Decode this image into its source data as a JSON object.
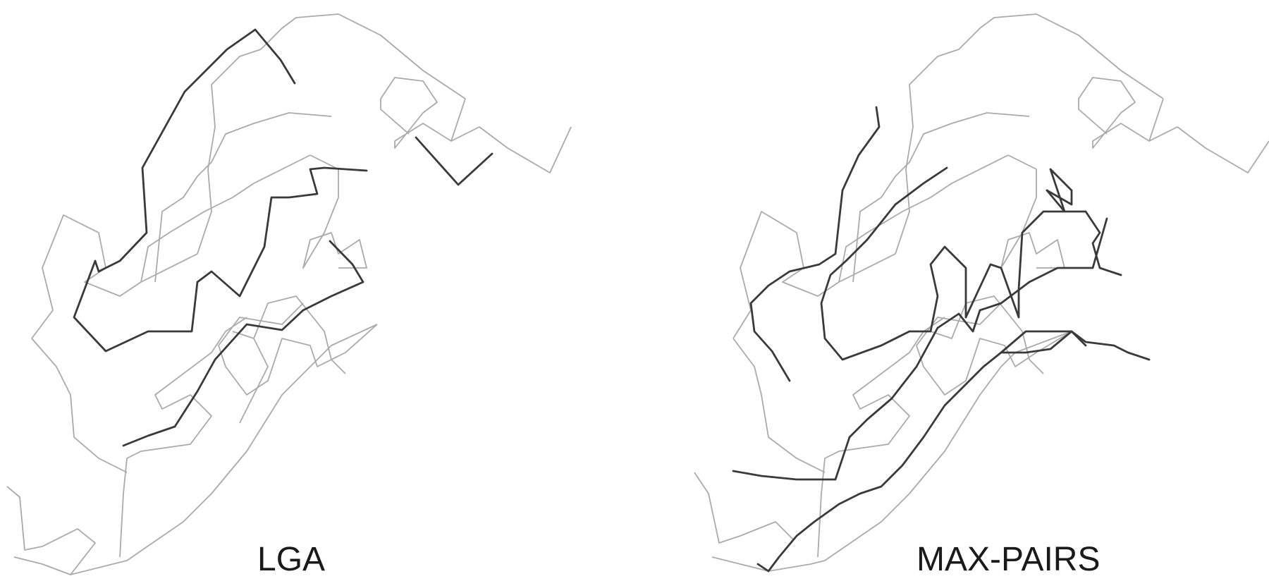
{
  "panels": [
    {
      "label": "LGA",
      "reference_color": "#aaaaaa",
      "superposed_color": "#3a3a3a"
    },
    {
      "label": "MAX-PAIRS",
      "reference_color": "#aaaaaa",
      "superposed_color": "#3a3a3a"
    }
  ]
}
